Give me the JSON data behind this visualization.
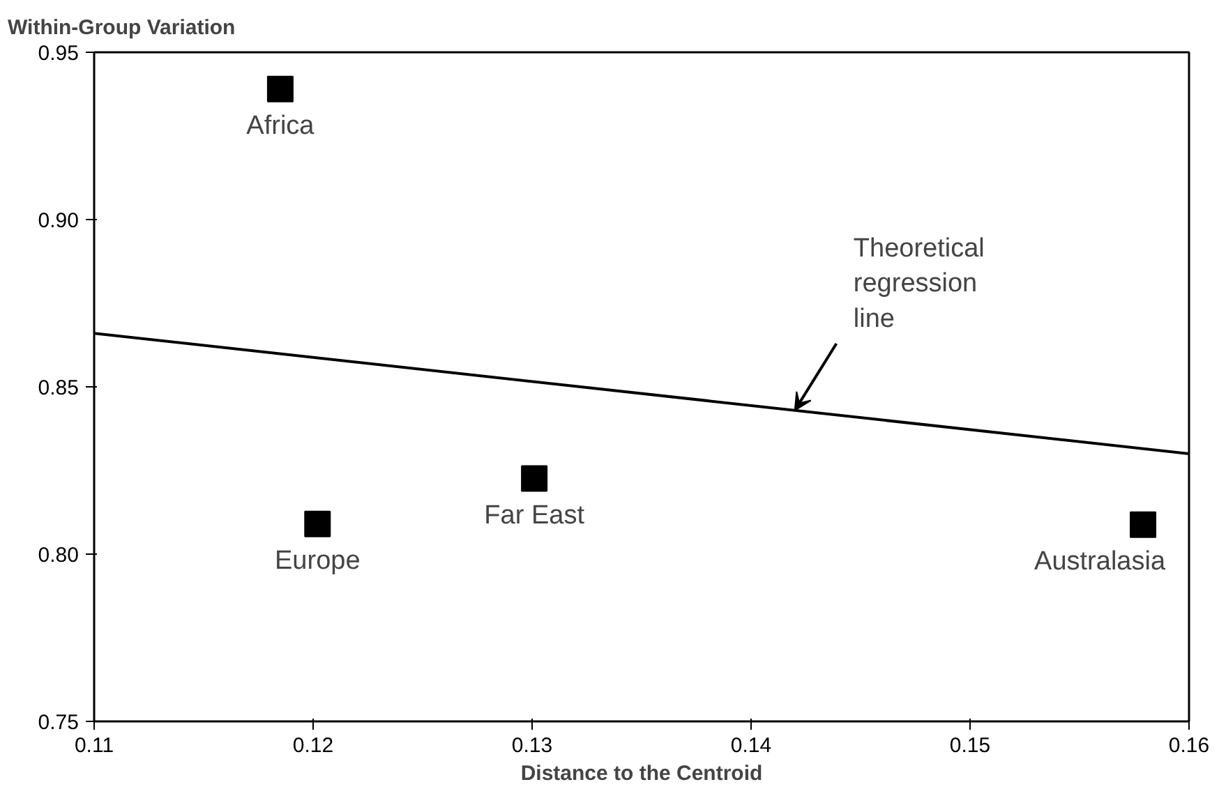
{
  "chart_data": {
    "type": "scatter",
    "ylabel": "Within-Group Variation",
    "xlabel": "Distance to the Centroid",
    "xlim": [
      0.11,
      0.16
    ],
    "xticks": [
      0.11,
      0.12,
      0.13,
      0.14,
      0.15,
      0.16
    ],
    "ylim": [
      0.75,
      0.95
    ],
    "yticks": [
      0.75,
      {
        "value": 0.8,
        "label": "0.80"
      },
      0.85,
      {
        "value": 0.9,
        "label": "0.90"
      },
      0.95
    ],
    "grid": false,
    "marker": "square",
    "series": [
      {
        "name": "Africa",
        "color": "#000000",
        "x": [
          0.1185
        ],
        "values": [
          0.939
        ]
      },
      {
        "name": "Europe",
        "color": "#000000",
        "x": [
          0.1202
        ],
        "values": [
          0.809
        ]
      },
      {
        "name": "Far East",
        "color": "#000000",
        "x": [
          0.1301
        ],
        "values": [
          0.8226
        ]
      },
      {
        "name": "Australasia",
        "color": "#000000",
        "x": [
          0.1579
        ],
        "values": [
          0.8088
        ]
      },
      {
        "type": "line",
        "color": "#000000",
        "line_style": "solid",
        "marker": "none",
        "x": [
          0.11,
          0.16
        ],
        "values": [
          0.866,
          0.83
        ]
      }
    ],
    "annotations": [
      {
        "text": "Theoretical regression line",
        "x": 0.142,
        "y": 0.843
      }
    ]
  }
}
